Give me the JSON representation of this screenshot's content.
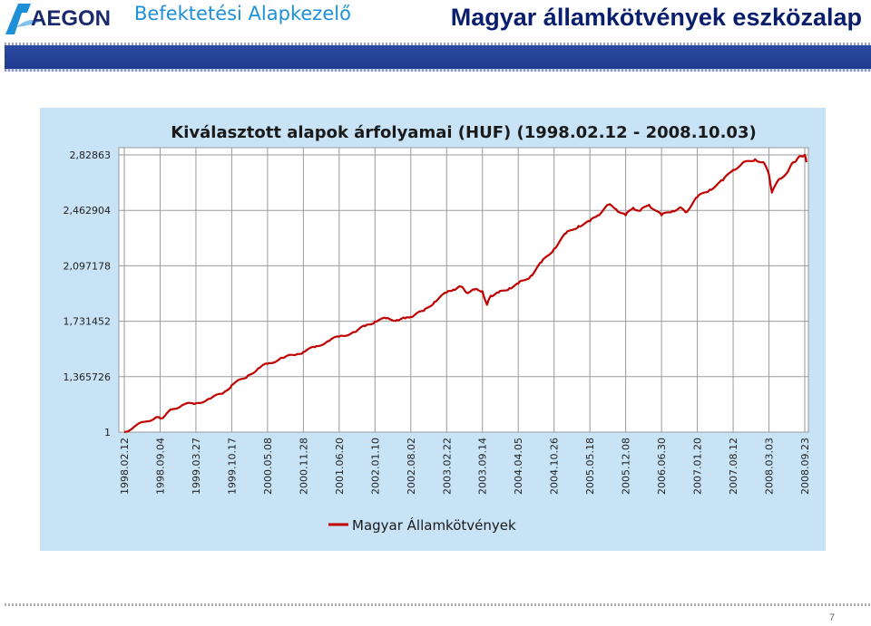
{
  "header": {
    "logo_text": "AEGON",
    "company": "Befektetési Alapkezelő",
    "slide_title": "Magyar államkötvények eszközalap"
  },
  "footer": {
    "page_number": "7"
  },
  "colors": {
    "series": "#c00000",
    "brand": "#1e90d8",
    "title": "#0a1e6e",
    "panel": "#c8e2f6"
  },
  "chart_data": {
    "type": "line",
    "title": "Kiválasztott alapok árfolyamai (HUF) (1998.02.12 - 2008.10.03)",
    "xlabel": "",
    "ylabel": "",
    "y_ticks": [
      "2,82863",
      "2,462904",
      "2,097178",
      "1,731452",
      "1,365726",
      "1"
    ],
    "y_tick_values": [
      2.82863,
      2.462904,
      2.097178,
      1.731452,
      1.365726,
      1
    ],
    "ylim": [
      1,
      2.82863
    ],
    "x_ticks": [
      "1998.02.12",
      "1998.09.04",
      "1999.03.27",
      "1999.10.17",
      "2000.05.08",
      "2000.11.28",
      "2001.06.20",
      "2002.01.10",
      "2002.08.02",
      "2003.02.22",
      "2003.09.14",
      "2004.04.05",
      "2004.10.26",
      "2005.05.18",
      "2005.12.08",
      "2006.06.30",
      "2007.01.20",
      "2007.08.12",
      "2008.03.03",
      "2008.09.23"
    ],
    "grid": true,
    "legend": "bottom",
    "series": [
      {
        "name": "Magyar Államkötvények",
        "color": "#c00000",
        "x": [
          "1998.02.12",
          "1998.04.15",
          "1998.06.15",
          "1998.08.15",
          "1998.09.04",
          "1998.09.25",
          "1998.11.10",
          "1999.01.10",
          "1999.03.27",
          "1999.06.15",
          "1999.09.01",
          "1999.10.17",
          "2000.01.15",
          "2000.03.15",
          "2000.05.08",
          "2000.08.01",
          "2000.10.15",
          "2000.11.28",
          "2001.02.01",
          "2001.04.15",
          "2001.06.20",
          "2001.09.15",
          "2001.11.15",
          "2002.01.10",
          "2002.03.15",
          "2002.05.15",
          "2002.07.01",
          "2002.08.02",
          "2002.10.15",
          "2002.12.15",
          "2003.02.22",
          "2003.04.01",
          "2003.05.15",
          "2003.06.15",
          "2003.08.01",
          "2003.09.14",
          "2003.10.10",
          "2003.11.01",
          "2003.12.15",
          "2004.02.15",
          "2004.04.05",
          "2004.06.15",
          "2004.08.15",
          "2004.10.26",
          "2005.01.01",
          "2005.03.15",
          "2005.05.18",
          "2005.07.01",
          "2005.09.01",
          "2005.10.15",
          "2005.12.08",
          "2006.01.20",
          "2006.03.01",
          "2006.04.20",
          "2006.06.30",
          "2006.09.01",
          "2006.10.10",
          "2006.11.15",
          "2007.01.20",
          "2007.04.01",
          "2007.06.15",
          "2007.08.12",
          "2007.10.01",
          "2007.12.15",
          "2008.02.01",
          "2008.03.03",
          "2008.03.20",
          "2008.05.01",
          "2008.06.20",
          "2008.07.20",
          "2008.08.10",
          "2008.09.01",
          "2008.09.23",
          "2008.10.03"
        ],
        "y": [
          1.0,
          1.04,
          1.07,
          1.1,
          1.09,
          1.1,
          1.15,
          1.18,
          1.19,
          1.22,
          1.26,
          1.31,
          1.37,
          1.42,
          1.45,
          1.49,
          1.51,
          1.53,
          1.56,
          1.6,
          1.63,
          1.66,
          1.7,
          1.73,
          1.75,
          1.74,
          1.75,
          1.76,
          1.8,
          1.86,
          1.92,
          1.94,
          1.96,
          1.92,
          1.94,
          1.93,
          1.84,
          1.9,
          1.92,
          1.95,
          1.98,
          2.03,
          2.12,
          2.21,
          2.31,
          2.36,
          2.39,
          2.43,
          2.5,
          2.47,
          2.43,
          2.48,
          2.46,
          2.5,
          2.43,
          2.46,
          2.48,
          2.45,
          2.55,
          2.6,
          2.66,
          2.73,
          2.77,
          2.8,
          2.78,
          2.7,
          2.58,
          2.67,
          2.72,
          2.78,
          2.8,
          2.82,
          2.83,
          2.78
        ]
      }
    ]
  }
}
